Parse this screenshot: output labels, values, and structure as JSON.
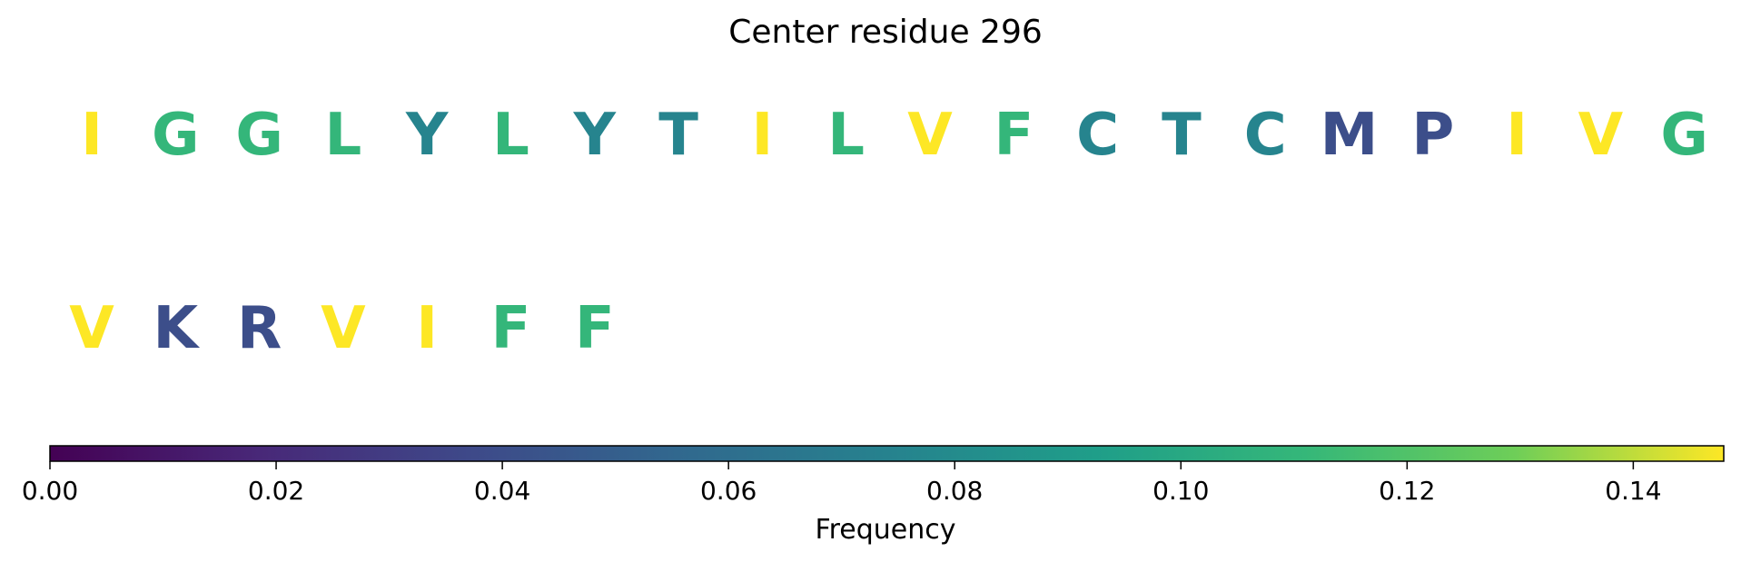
{
  "chart_data": {
    "type": "sequence-logo-colormap",
    "title": "Center residue 296",
    "rows": [
      {
        "residues": [
          "I",
          "G",
          "G",
          "L",
          "Y",
          "L",
          "Y",
          "T",
          "I",
          "L",
          "V",
          "F",
          "C",
          "T",
          "C",
          "M",
          "P",
          "I",
          "V",
          "G"
        ],
        "frequencies": [
          0.148,
          0.11,
          0.11,
          0.11,
          0.075,
          0.11,
          0.075,
          0.075,
          0.148,
          0.11,
          0.148,
          0.11,
          0.075,
          0.075,
          0.075,
          0.04,
          0.04,
          0.148,
          0.148,
          0.11
        ]
      },
      {
        "residues": [
          "V",
          "K",
          "R",
          "V",
          "I",
          "F",
          "F"
        ],
        "frequencies": [
          0.148,
          0.04,
          0.04,
          0.148,
          0.148,
          0.11,
          0.11
        ]
      }
    ],
    "colorbar": {
      "colormap": "viridis",
      "range": [
        0,
        0.148
      ],
      "ticks": [
        0.0,
        0.02,
        0.04,
        0.06,
        0.08,
        0.1,
        0.12,
        0.14
      ],
      "tick_labels": [
        "0.00",
        "0.02",
        "0.04",
        "0.06",
        "0.08",
        "0.10",
        "0.12",
        "0.14"
      ],
      "label": "Frequency"
    }
  }
}
